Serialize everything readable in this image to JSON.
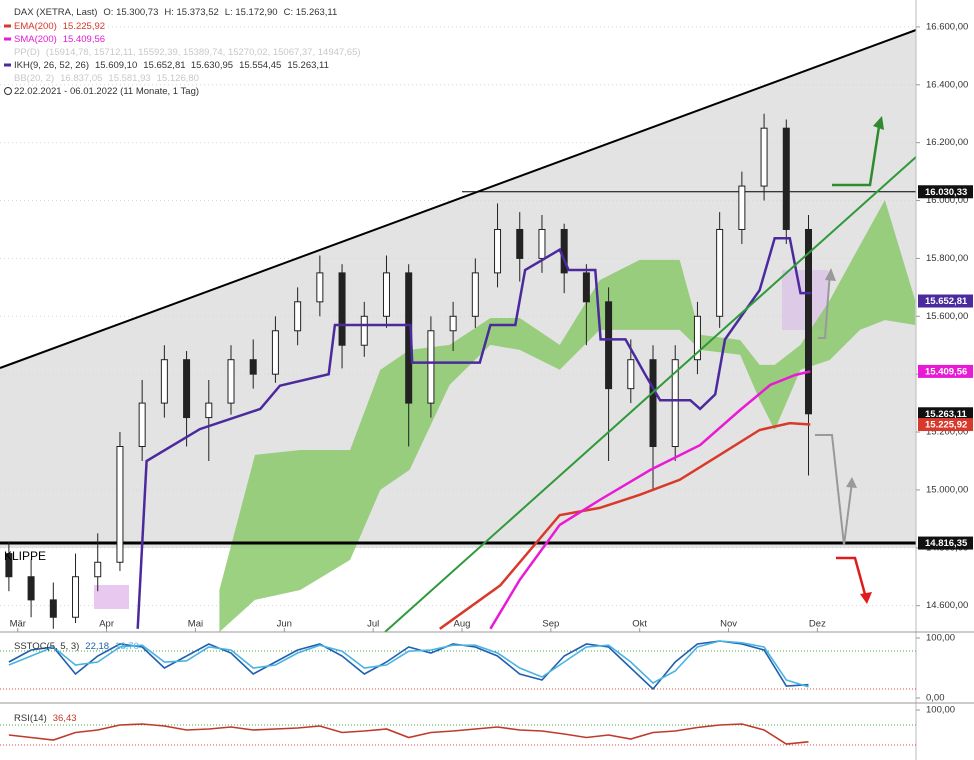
{
  "chart_data": [
    {
      "type": "candlestick",
      "header": {
        "label": "DAX (XETRA, Last)",
        "values": [
          "O: 15.300,73",
          "H: 15.373,52",
          "L: 15.172,90",
          "C: 15.263,11"
        ]
      },
      "inactive_legend": [
        {
          "name": "PP(D)",
          "legend_values": [
            "(15914,78, 15712,11, 15592,39, 15389,74, 15270,02, 15067,37, 14947,65)"
          ]
        },
        {
          "name": "BB(20, 2)",
          "legend_values": [
            "16.837,05",
            "15.581,93",
            "15.126,80"
          ]
        }
      ],
      "period": "22.02.2021 - 06.01.2022   (11 Monate, 1 Tag)",
      "annotation": "KLIPPE",
      "xlim": [
        -0.2,
        10.11
      ],
      "ylim": [
        14509,
        16693
      ],
      "xticks": [
        {
          "value": 0,
          "label": "Mär"
        },
        {
          "value": 1,
          "label": "Apr"
        },
        {
          "value": 2,
          "label": "Mai"
        },
        {
          "value": 3,
          "label": "Jun"
        },
        {
          "value": 4,
          "label": "Jul"
        },
        {
          "value": 5,
          "label": "Aug"
        },
        {
          "value": 6,
          "label": "Sep"
        },
        {
          "value": 7,
          "label": "Okt"
        },
        {
          "value": 8,
          "label": "Nov"
        },
        {
          "value": 9,
          "label": "Dez"
        }
      ],
      "yticks": [
        {
          "value": 14600,
          "label": "14.600,00"
        },
        {
          "value": 14800,
          "label": "14.800,00"
        },
        {
          "value": 15000,
          "label": "15.000,00"
        },
        {
          "value": 15200,
          "label": "15.200,00"
        },
        {
          "value": 15400,
          "label": "15.400,00"
        },
        {
          "value": 15600,
          "label": "15.600,00"
        },
        {
          "value": 15800,
          "label": "15.800,00"
        },
        {
          "value": 16000,
          "label": "16.000,00"
        },
        {
          "value": 16200,
          "label": "16.200,00"
        },
        {
          "value": 16400,
          "label": "16.400,00"
        },
        {
          "value": 16600,
          "label": "16.600,00"
        }
      ],
      "grid": true,
      "x": [
        -0.1,
        0.15,
        0.4,
        0.65,
        0.9,
        1.15,
        1.4,
        1.65,
        1.9,
        2.15,
        2.4,
        2.65,
        2.9,
        3.15,
        3.4,
        3.65,
        3.9,
        4.15,
        4.4,
        4.65,
        4.9,
        5.15,
        5.4,
        5.65,
        5.9,
        6.15,
        6.4,
        6.65,
        6.9,
        7.15,
        7.4,
        7.65,
        7.9,
        8.15,
        8.4,
        8.65,
        8.9
      ],
      "open": [
        14780,
        14700,
        14620,
        14560,
        14700,
        14750,
        15150,
        15300,
        15450,
        15250,
        15300,
        15450,
        15400,
        15550,
        15650,
        15750,
        15500,
        15600,
        15750,
        15300,
        15550,
        15600,
        15750,
        15900,
        15800,
        15900,
        15750,
        15650,
        15350,
        15450,
        15150,
        15450,
        15600,
        15900,
        16050,
        16250,
        15900
      ],
      "high": [
        14820,
        14760,
        14680,
        14780,
        14850,
        15200,
        15380,
        15500,
        15480,
        15380,
        15500,
        15520,
        15600,
        15700,
        15810,
        15780,
        15650,
        15810,
        15780,
        15600,
        15650,
        15800,
        15990,
        15960,
        15950,
        15920,
        15780,
        15700,
        15520,
        15500,
        15500,
        15650,
        15960,
        16100,
        16300,
        16280,
        15950
      ],
      "low": [
        14650,
        14560,
        14520,
        14540,
        14650,
        14720,
        15100,
        15250,
        15150,
        15100,
        15260,
        15350,
        15370,
        15500,
        15600,
        15420,
        15460,
        15560,
        15150,
        15250,
        15480,
        15560,
        15700,
        15720,
        15750,
        15680,
        15500,
        15100,
        15300,
        15000,
        15100,
        15400,
        15560,
        15850,
        16000,
        15850,
        15050
      ],
      "close": [
        14700,
        14620,
        14560,
        14700,
        14750,
        15150,
        15300,
        15450,
        15250,
        15300,
        15450,
        15400,
        15550,
        15650,
        15750,
        15500,
        15600,
        15750,
        15300,
        15550,
        15600,
        15750,
        15900,
        15800,
        15900,
        15750,
        15650,
        15350,
        15450,
        15150,
        15450,
        15600,
        15900,
        16050,
        16250,
        15900,
        15263.11
      ],
      "series": [
        {
          "name": "EMA(200)",
          "color": "#d8392b",
          "legend_values": [
            "15.225,92"
          ],
          "x": [
            4.75,
            5.43,
            6.1,
            6.55,
            7.0,
            7.45,
            7.9,
            8.35,
            8.69,
            8.92
          ],
          "values": [
            14520,
            14670,
            14913,
            14938,
            14983,
            15035,
            15121,
            15207,
            15231,
            15225.92
          ]
        },
        {
          "name": "SMA(200)",
          "color": "#e81ad6",
          "legend_values": [
            "15.409,56"
          ],
          "x": [
            5.32,
            5.65,
            6.1,
            6.55,
            7.12,
            7.68,
            8.13,
            8.47,
            8.75,
            8.92
          ],
          "values": [
            14520,
            14689,
            14879,
            14965,
            15069,
            15155,
            15276,
            15363,
            15397,
            15409.56
          ]
        },
        {
          "name": "IKH(9, 26, 52, 26)",
          "color": "#4b2a9e",
          "legend_values": [
            "15.609,10",
            "15.652,81",
            "15.630,95",
            "15.554,45",
            "15.263,11"
          ],
          "x": [
            1.35,
            1.45,
            2.05,
            2.73,
            2.95,
            3.5,
            3.57,
            4.42,
            4.44,
            5.2,
            5.32,
            5.6,
            5.71,
            6.1,
            6.2,
            6.5,
            6.56,
            6.84,
            7.06,
            7.23,
            7.57,
            7.68,
            7.85,
            7.96,
            8.35,
            8.52,
            8.69,
            8.81,
            8.93
          ],
          "values": [
            14520,
            15100,
            15210,
            15280,
            15360,
            15400,
            15570,
            15570,
            15440,
            15440,
            15570,
            15570,
            15760,
            15830,
            15760,
            15760,
            15520,
            15520,
            15400,
            15310,
            15310,
            15280,
            15330,
            15520,
            15690,
            15870,
            15870,
            15680,
            15680
          ]
        }
      ],
      "cloud": {
        "color": "#8cc96c",
        "x": [
          2.27,
          2.67,
          3.18,
          3.74,
          4.08,
          4.41,
          4.86,
          5.32,
          5.65,
          6.1,
          6.55,
          7.0,
          7.45,
          7.68,
          8.13,
          8.35,
          8.52,
          8.81,
          9.14,
          9.48,
          9.76,
          10.1
        ],
        "upper": [
          14654,
          15121,
          15138,
          15138,
          15415,
          15484,
          15501,
          15594,
          15594,
          15501,
          15725,
          15795,
          15795,
          15536,
          15518,
          15432,
          15432,
          15501,
          15656,
          15846,
          16002,
          15656
        ],
        "lower": [
          14509,
          14620,
          14654,
          14758,
          15000,
          15069,
          15363,
          15501,
          15484,
          15415,
          15553,
          15553,
          15553,
          15484,
          15467,
          15311,
          15207,
          15415,
          15449,
          15553,
          15587,
          15570
        ]
      },
      "levels": [
        {
          "value": 16030.33,
          "from": 5.0
        },
        {
          "value": 14816.35,
          "from": -0.2
        }
      ],
      "price_tags": [
        {
          "value": 16030.33,
          "label": "16.030,33",
          "color": "#111111"
        },
        {
          "value": 15652.81,
          "label": "15.652,81",
          "color": "#4b2a9e"
        },
        {
          "value": 15409.56,
          "label": "15.409,56",
          "color": "#e81ad6"
        },
        {
          "value": 15263.11,
          "label": "15.263,11",
          "color": "#111111"
        },
        {
          "value": 15225.92,
          "label": "15.225,92",
          "color": "#d8392b"
        },
        {
          "value": 14816.35,
          "label": "14.816,35",
          "color": "#111111"
        }
      ]
    },
    {
      "type": "line",
      "title": "SSTOC(5, 5, 3)",
      "xlim": [
        -0.2,
        10.11
      ],
      "ylim": [
        0,
        100
      ],
      "yticks": [
        {
          "value": 100,
          "label": "100,00"
        },
        {
          "value": 0,
          "label": "0,00"
        }
      ],
      "x": [
        -0.1,
        0.15,
        0.4,
        0.65,
        0.9,
        1.15,
        1.4,
        1.65,
        1.9,
        2.15,
        2.4,
        2.65,
        2.9,
        3.15,
        3.4,
        3.65,
        3.9,
        4.15,
        4.4,
        4.65,
        4.9,
        5.15,
        5.4,
        5.65,
        5.9,
        6.15,
        6.4,
        6.65,
        6.9,
        7.15,
        7.4,
        7.65,
        7.9,
        8.15,
        8.4,
        8.65,
        8.9
      ],
      "series": [
        {
          "color": "#1f5fb0",
          "value_label": "22,18",
          "values": [
            60,
            80,
            85,
            40,
            70,
            90,
            85,
            50,
            70,
            90,
            75,
            40,
            60,
            80,
            90,
            70,
            40,
            60,
            85,
            75,
            90,
            85,
            70,
            40,
            30,
            70,
            90,
            85,
            50,
            15,
            60,
            90,
            95,
            90,
            80,
            20,
            22.18
          ]
        },
        {
          "color": "#4bb3e0",
          "value_label": "18,70",
          "values": [
            55,
            70,
            85,
            55,
            60,
            85,
            88,
            60,
            62,
            85,
            80,
            50,
            55,
            75,
            88,
            78,
            50,
            55,
            78,
            80,
            88,
            88,
            75,
            50,
            35,
            60,
            85,
            88,
            60,
            25,
            45,
            85,
            95,
            92,
            85,
            30,
            18.7
          ]
        }
      ]
    },
    {
      "type": "line",
      "title": "RSI(14)",
      "xlim": [
        -0.2,
        10.11
      ],
      "ylim": [
        0,
        100
      ],
      "yticks": [
        {
          "value": 100,
          "label": "100,00"
        }
      ],
      "x": [
        -0.1,
        0.15,
        0.4,
        0.65,
        0.9,
        1.15,
        1.4,
        1.65,
        1.9,
        2.15,
        2.4,
        2.65,
        2.9,
        3.15,
        3.4,
        3.65,
        3.9,
        4.15,
        4.4,
        4.65,
        4.9,
        5.15,
        5.4,
        5.65,
        5.9,
        6.15,
        6.4,
        6.65,
        6.9,
        7.15,
        7.4,
        7.65,
        7.9,
        8.15,
        8.4,
        8.65,
        8.9
      ],
      "series": [
        {
          "color": "#c0392b",
          "value_label": "36,43",
          "values": [
            50,
            45,
            40,
            55,
            60,
            70,
            72,
            68,
            60,
            62,
            66,
            60,
            62,
            64,
            68,
            55,
            58,
            62,
            45,
            55,
            58,
            62,
            66,
            60,
            58,
            52,
            45,
            50,
            42,
            55,
            58,
            65,
            70,
            72,
            60,
            32,
            36.43
          ]
        }
      ]
    }
  ]
}
